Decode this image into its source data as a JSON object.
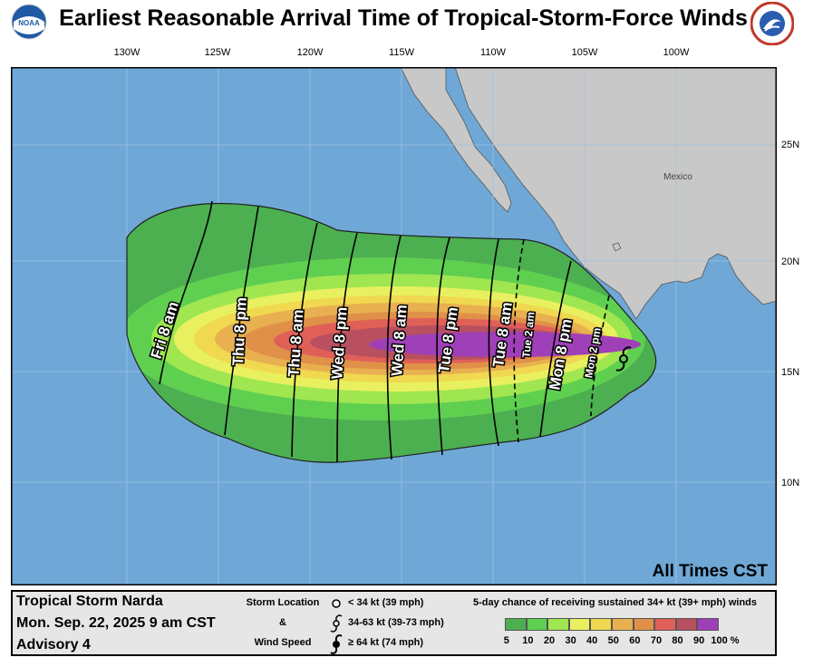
{
  "header": {
    "title": "Earliest Reasonable Arrival Time of Tropical-Storm-Force Winds",
    "left_logo": "noaa-logo",
    "right_logo": "national-weather-service-logo"
  },
  "axes": {
    "longitudes": [
      "130W",
      "125W",
      "120W",
      "115W",
      "110W",
      "105W",
      "100W"
    ],
    "latitudes": [
      "25N",
      "20N",
      "15N",
      "10N"
    ]
  },
  "map": {
    "land_label": "Mexico",
    "time_zone_note": "All Times CST",
    "ocean_color": "#6fa8d6",
    "land_color": "#c8c8c8",
    "arrival_labels": [
      "Fri 8 am",
      "Thu 8 pm",
      "Thu 8 am",
      "Wed 8 pm",
      "Wed 8 am",
      "Tue 8 pm",
      "Tue 8 am",
      "Tue 2 am",
      "Mon 8 pm",
      "Mon 2 pm"
    ],
    "storm_symbol": "tropical-storm-symbol"
  },
  "footer": {
    "storm_name": "Tropical Storm Narda",
    "issued": "Mon. Sep. 22, 2025  9 am CST",
    "advisory": "Advisory 4",
    "legend_heading_1": "Storm Location",
    "legend_heading_2": "&",
    "legend_heading_3": "Wind Speed",
    "legend_items": [
      "< 34 kt (39 mph)",
      "34-63 kt (39-73 mph)",
      "≥ 64 kt (74 mph)"
    ],
    "scale_title": "5-day chance of receiving sustained 34+ kt (39+ mph) winds",
    "scale_labels": [
      "5",
      "10",
      "20",
      "30",
      "40",
      "50",
      "60",
      "70",
      "80",
      "90",
      "100 %"
    ],
    "scale_colors": [
      "#4caf50",
      "#5fcf50",
      "#9fe650",
      "#e8f060",
      "#f0d850",
      "#e8b050",
      "#e09048",
      "#e06058",
      "#b85060",
      "#a040b8"
    ]
  }
}
